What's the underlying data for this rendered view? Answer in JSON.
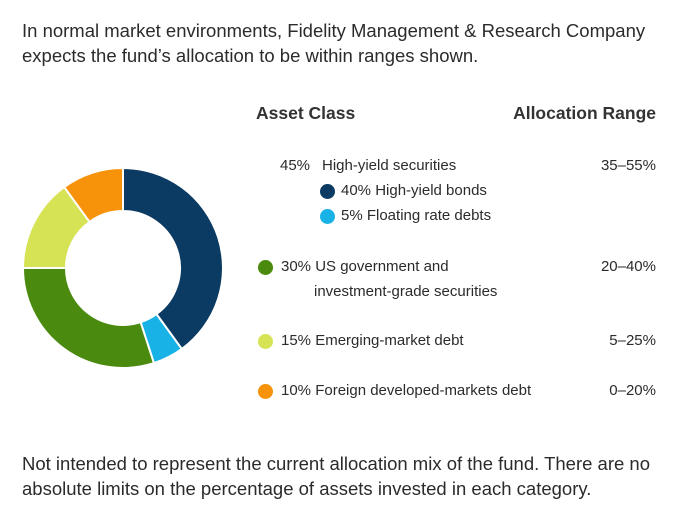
{
  "intro_text": "In normal market environments, Fidelity Management & Research Company expects the fund’s allocation to be within ranges shown.",
  "footer_text": "Not intended to represent the current allocation mix of the fund. There are no absolute limits on the percentage of assets invested in each category.",
  "chart_data": {
    "type": "pie",
    "variant": "donut",
    "slices": [
      {
        "label": "High-yield bonds",
        "value": 40,
        "color": "#0b3a62"
      },
      {
        "label": "Floating rate debts",
        "value": 5,
        "color": "#19b2e6"
      },
      {
        "label": "US government and investment-grade securities",
        "value": 30,
        "color": "#4a8a0e"
      },
      {
        "label": "Emerging-market debt",
        "value": 15,
        "color": "#d6e354"
      },
      {
        "label": "Foreign developed-markets debt",
        "value": 10,
        "color": "#f7930a"
      }
    ]
  },
  "table": {
    "header_asset": "Asset Class",
    "header_range": "Allocation Range",
    "highyield": {
      "pct": "45%",
      "label": "High-yield securities",
      "range": "35–55%",
      "sub": [
        {
          "pct_label": "40% High-yield bonds"
        },
        {
          "pct_label": "5% Floating rate debts"
        }
      ]
    },
    "rows": [
      {
        "line1": "30% US government and",
        "line2": "investment-grade securities",
        "range": "20–40%"
      },
      {
        "line1": "15% Emerging-market debt",
        "range": "5–25%"
      },
      {
        "line1": "10% Foreign developed-markets debt",
        "range": "0–20%"
      }
    ]
  }
}
